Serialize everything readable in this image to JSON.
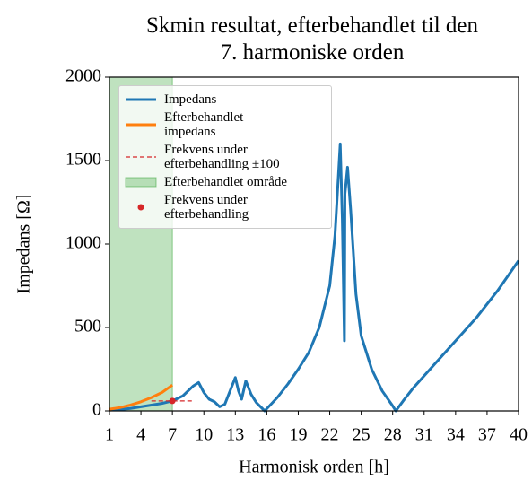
{
  "chart_data": {
    "type": "line",
    "title": "Skmin resultat, efterbehandlet til den\n7. harmoniske orden",
    "xlabel": "Harmonisk orden [h]",
    "ylabel": "Impedans [Ω]",
    "xlim": [
      1,
      40
    ],
    "xticks": [
      1,
      4,
      7,
      10,
      13,
      16,
      19,
      22,
      25,
      28,
      31,
      34,
      37,
      40
    ],
    "ylim": [
      0,
      2000
    ],
    "yticks": [
      0,
      500,
      1000,
      1500,
      2000
    ],
    "legend": "upper left",
    "series": [
      {
        "name": "Impedans",
        "kind": "line",
        "color": "#1f77b4",
        "x": [
          1,
          2,
          3,
          4,
          5,
          6,
          7,
          8,
          9,
          9.5,
          10,
          10.5,
          11,
          11.5,
          12,
          12.5,
          13,
          13.3,
          13.6,
          14,
          14.5,
          15,
          15.8,
          17,
          18,
          19,
          20,
          21,
          22,
          22.5,
          23,
          23.2,
          23.4,
          23.45,
          23.7,
          24,
          24.5,
          25,
          26,
          27,
          28,
          28.3,
          29,
          30,
          32,
          34,
          36,
          38,
          40
        ],
        "values": [
          5,
          8,
          15,
          25,
          35,
          45,
          60,
          90,
          150,
          170,
          110,
          70,
          55,
          25,
          40,
          120,
          200,
          120,
          70,
          180,
          100,
          50,
          0,
          80,
          160,
          250,
          350,
          500,
          750,
          1050,
          1600,
          1150,
          420,
          1300,
          1460,
          1200,
          700,
          450,
          250,
          120,
          30,
          0,
          60,
          140,
          280,
          420,
          560,
          720,
          900
        ]
      },
      {
        "name": "Efterbehandlet\nimpedans",
        "kind": "line",
        "color": "#ff7f0e",
        "x": [
          1,
          2,
          3,
          4,
          5,
          6,
          7
        ],
        "values": [
          10,
          20,
          35,
          55,
          80,
          110,
          155
        ]
      },
      {
        "name": "Frekvens under\nefterbehandling ±100",
        "kind": "dashed",
        "color": "#d62728",
        "x": [
          5,
          9
        ],
        "values": [
          60,
          60
        ]
      },
      {
        "name": "Efterbehandlet område",
        "kind": "region",
        "color": "#2ca02c",
        "x": [
          1,
          7
        ]
      },
      {
        "name": "Frekvens under\nefterbehandling",
        "kind": "point",
        "color": "#d62728",
        "x": [
          7
        ],
        "values": [
          60
        ]
      }
    ]
  }
}
